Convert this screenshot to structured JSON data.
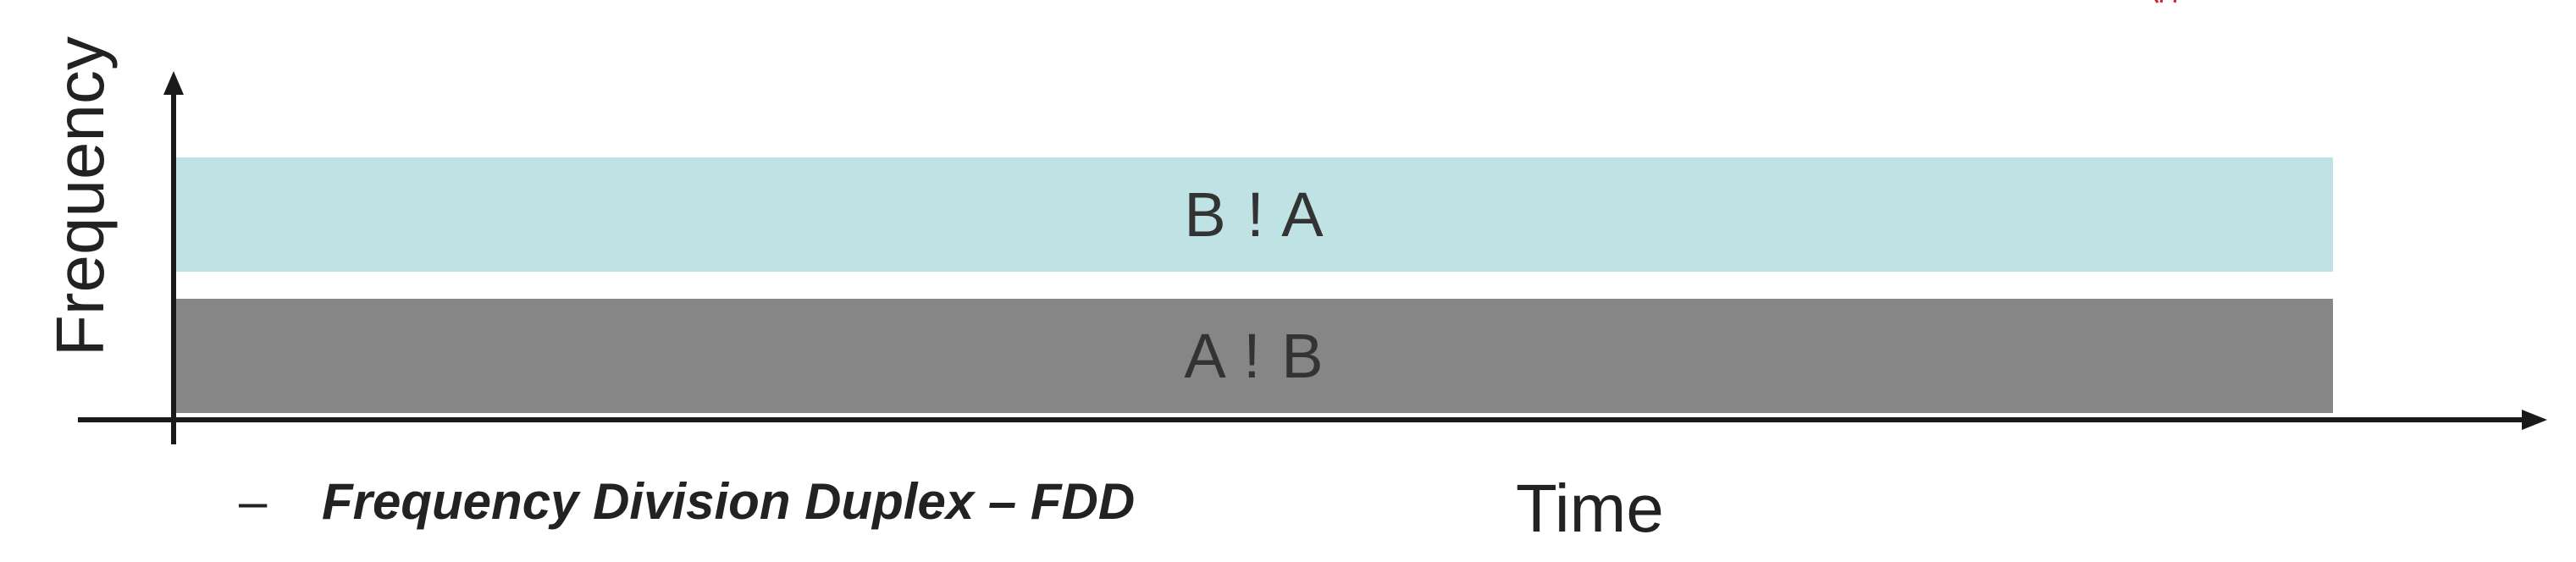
{
  "axes": {
    "y_label": "Frequency",
    "x_label": "Time"
  },
  "bands": {
    "top_label": "B ! A",
    "bottom_label": "A ! B",
    "top_color": "#bfe2e4",
    "bottom_color": "#868686"
  },
  "caption": {
    "bullet": "–",
    "text": "Frequency Division Duplex – FDD"
  }
}
